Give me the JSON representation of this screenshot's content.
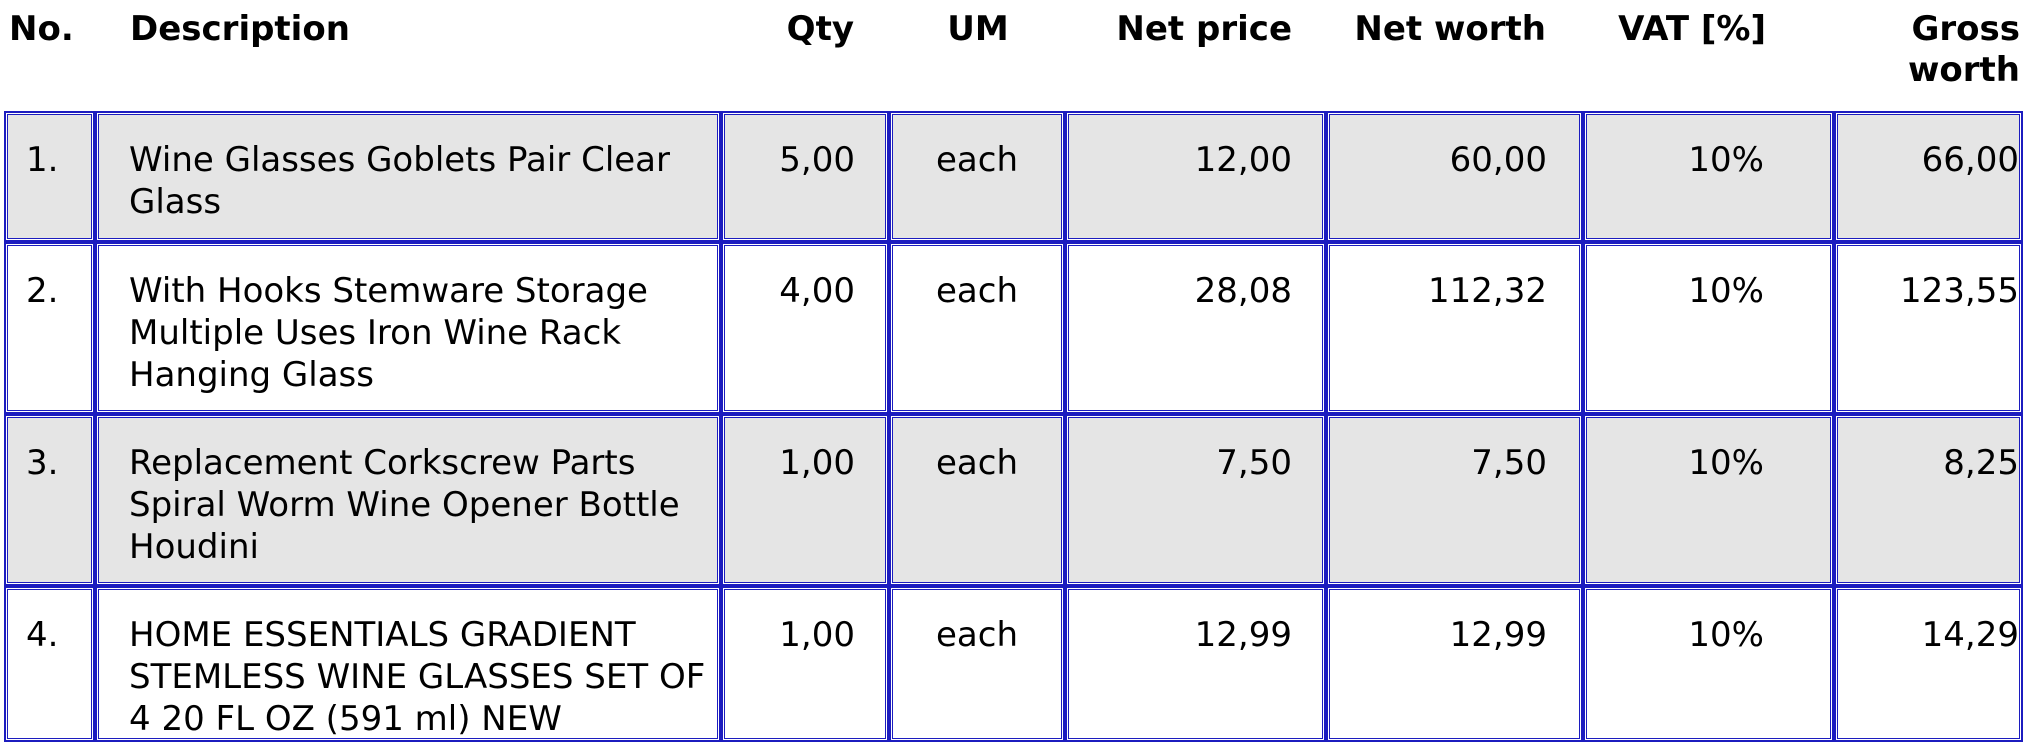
{
  "header": {
    "no": "No.",
    "description": "Description",
    "qty": "Qty",
    "um": "UM",
    "net_price": "Net price",
    "net_worth": "Net worth",
    "vat": "VAT [%]",
    "gross_line1": "Gross",
    "gross_line2": "worth"
  },
  "rows": [
    {
      "no": "1.",
      "description": "Wine Glasses Goblets Pair Clear Glass",
      "qty": "5,00",
      "um": "each",
      "net_price": "12,00",
      "net_worth": "60,00",
      "vat": "10%",
      "gross_worth": "66,00"
    },
    {
      "no": "2.",
      "description": "With Hooks Stemware Storage Multiple Uses Iron Wine Rack Hanging Glass",
      "qty": "4,00",
      "um": "each",
      "net_price": "28,08",
      "net_worth": "112,32",
      "vat": "10%",
      "gross_worth": "123,55"
    },
    {
      "no": "3.",
      "description": "Replacement Corkscrew Parts Spiral Worm Wine Opener Bottle Houdini",
      "qty": "1,00",
      "um": "each",
      "net_price": "7,50",
      "net_worth": "7,50",
      "vat": "10%",
      "gross_worth": "8,25"
    },
    {
      "no": "4.",
      "description": "HOME ESSENTIALS GRADIENT STEMLESS WINE GLASSES SET OF 4 20 FL OZ (591 ml) NEW",
      "qty": "1,00",
      "um": "each",
      "net_price": "12,99",
      "net_worth": "12,99",
      "vat": "10%",
      "gross_worth": "14,29"
    }
  ]
}
